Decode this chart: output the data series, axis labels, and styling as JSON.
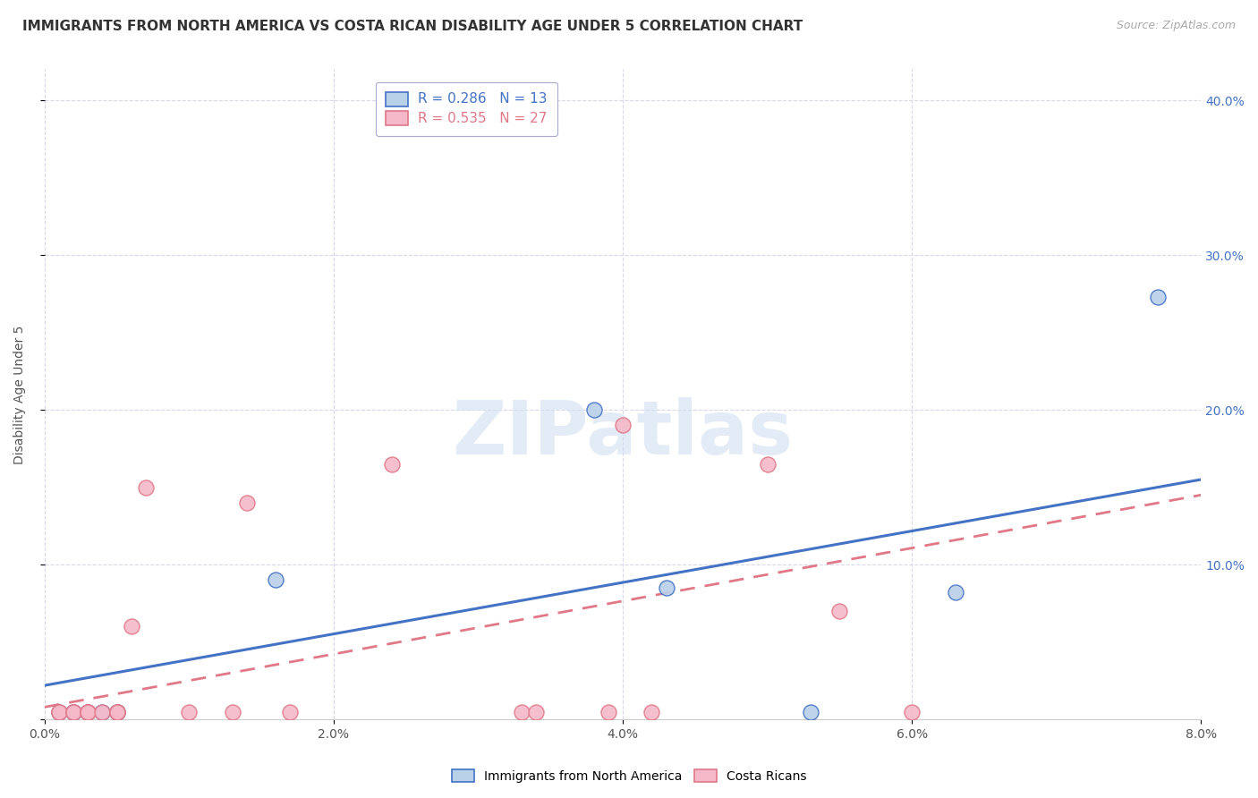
{
  "title": "IMMIGRANTS FROM NORTH AMERICA VS COSTA RICAN DISABILITY AGE UNDER 5 CORRELATION CHART",
  "source": "Source: ZipAtlas.com",
  "ylabel": "Disability Age Under 5",
  "xlim": [
    0.0,
    0.08
  ],
  "ylim": [
    0.0,
    0.42
  ],
  "blue_R": 0.286,
  "blue_N": 13,
  "pink_R": 0.535,
  "pink_N": 27,
  "blue_color": "#b8d0e8",
  "pink_color": "#f5b8c8",
  "blue_line_color": "#4472c4",
  "pink_line_color": "#e07888",
  "legend_label_blue": "Immigrants from North America",
  "legend_label_pink": "Costa Ricans",
  "blue_x": [
    0.001,
    0.002,
    0.002,
    0.003,
    0.004,
    0.005,
    0.005,
    0.016,
    0.038,
    0.043,
    0.053,
    0.063,
    0.077
  ],
  "blue_y": [
    0.005,
    0.005,
    0.005,
    0.005,
    0.005,
    0.005,
    0.005,
    0.09,
    0.2,
    0.085,
    0.005,
    0.082,
    0.273
  ],
  "pink_x": [
    0.001,
    0.001,
    0.002,
    0.002,
    0.003,
    0.003,
    0.003,
    0.003,
    0.004,
    0.005,
    0.005,
    0.005,
    0.006,
    0.007,
    0.01,
    0.013,
    0.014,
    0.017,
    0.024,
    0.033,
    0.034,
    0.039,
    0.04,
    0.042,
    0.05,
    0.055,
    0.06
  ],
  "pink_y": [
    0.005,
    0.005,
    0.005,
    0.005,
    0.005,
    0.005,
    0.005,
    0.005,
    0.005,
    0.005,
    0.005,
    0.005,
    0.06,
    0.15,
    0.005,
    0.005,
    0.14,
    0.005,
    0.165,
    0.005,
    0.005,
    0.005,
    0.19,
    0.005,
    0.165,
    0.07,
    0.005
  ],
  "blue_trend_x": [
    0.0,
    0.08
  ],
  "blue_trend_y": [
    0.022,
    0.155
  ],
  "pink_trend_x": [
    0.0,
    0.08
  ],
  "pink_trend_y": [
    0.008,
    0.145
  ],
  "title_fontsize": 11,
  "source_fontsize": 9,
  "axis_label_fontsize": 10,
  "tick_fontsize": 10,
  "legend_fontsize": 10,
  "watermark_text": "ZIPatlas",
  "watermark_color": "#d0dff0"
}
